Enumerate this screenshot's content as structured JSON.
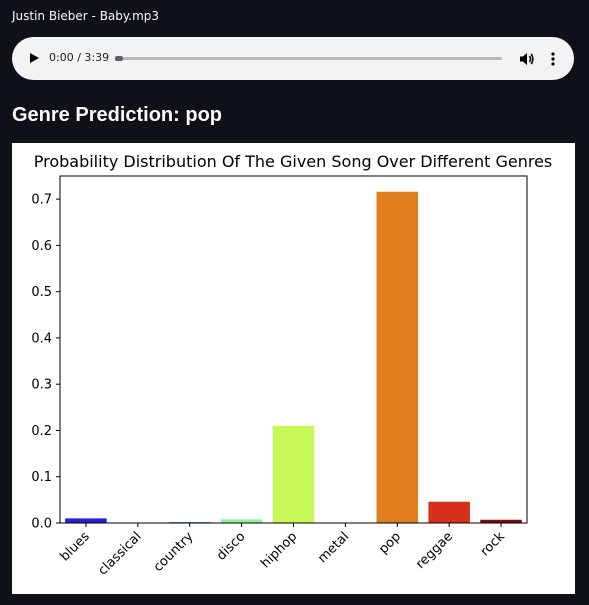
{
  "audio": {
    "file_name": "Justin Bieber - Baby.mp3",
    "time_display": "0:00 / 3:39",
    "progress": 0
  },
  "prediction": {
    "heading": "Genre Prediction: pop"
  },
  "colors": {
    "page_bg": "#0e1117",
    "player_bg": "#f1f3f4"
  },
  "chart_data": {
    "type": "bar",
    "title": "Probability Distribution Of The Given Song Over Different Genres",
    "xlabel": "",
    "ylabel": "",
    "categories": [
      "blues",
      "classical",
      "country",
      "disco",
      "hiphop",
      "metal",
      "pop",
      "reggae",
      "rock"
    ],
    "values": [
      0.01,
      0.0005,
      0.002,
      0.008,
      0.21,
      0.0005,
      0.716,
      0.046,
      0.007
    ],
    "colors": [
      "#2b1fd6",
      "#1c49e8",
      "#3aa0e8",
      "#8ef0a0",
      "#c8f858",
      "#f4c838",
      "#e07e1e",
      "#d8301a",
      "#7a0c0c"
    ],
    "ylim": [
      0,
      0.75
    ],
    "yticks": [
      "0.0",
      "0.1",
      "0.2",
      "0.3",
      "0.4",
      "0.5",
      "0.6",
      "0.7"
    ],
    "grid": false
  }
}
